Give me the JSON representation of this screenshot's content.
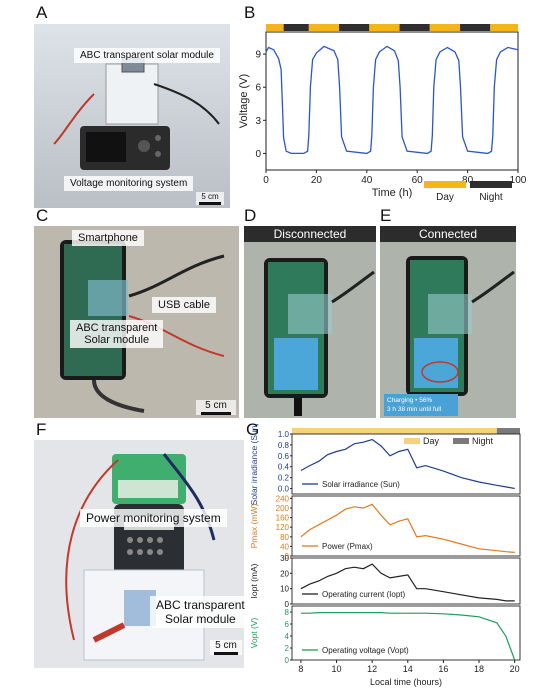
{
  "panels": {
    "A": {
      "letter": "A",
      "labels": {
        "module": "ABC transparent solar module",
        "monitor": "Voltage monitoring system"
      },
      "scale": "5 cm"
    },
    "B": {
      "letter": "B",
      "legend": {
        "day": "Day",
        "night": "Night"
      }
    },
    "C": {
      "letter": "C",
      "labels": {
        "phone": "Smartphone",
        "cable": "USB cable",
        "module_line1": "ABC transparent",
        "module_line2": "Solar module"
      },
      "scale": "5 cm"
    },
    "D": {
      "letter": "D",
      "header": "Disconnected"
    },
    "E": {
      "letter": "E",
      "header": "Connected",
      "overlay_line1": "Charging • 56%",
      "overlay_line2": "3 h 38 min until full"
    },
    "F": {
      "letter": "F",
      "labels": {
        "monitor": "Power monitoring system",
        "module_line1": "ABC transparent",
        "module_line2": "Solar module"
      },
      "scale": "5 cm"
    },
    "G": {
      "letter": "G",
      "legend": {
        "day": "Day",
        "night": "Night"
      }
    }
  },
  "colors": {
    "day": "#f4b41a",
    "night": "#2e2e2e",
    "blue": "#1f3d8f",
    "orange": "#e07a1f",
    "black": "#222222",
    "green": "#1e9e5a",
    "line_b": "#2a56c6"
  },
  "chart_data": [
    {
      "type": "line",
      "panel": "B",
      "xlabel": "Time (h)",
      "ylabel": "Voltage (V)",
      "xlim": [
        0,
        100
      ],
      "ylim": [
        -1.5,
        11
      ],
      "xticks": [
        "0",
        "20",
        "40",
        "60",
        "80",
        "100"
      ],
      "yticks": [
        "0",
        "3",
        "6",
        "9"
      ],
      "day_night_bands": [
        {
          "from": 0,
          "to": 7,
          "phase": "day"
        },
        {
          "from": 7,
          "to": 17,
          "phase": "night"
        },
        {
          "from": 17,
          "to": 29,
          "phase": "day"
        },
        {
          "from": 29,
          "to": 41,
          "phase": "night"
        },
        {
          "from": 41,
          "to": 53,
          "phase": "day"
        },
        {
          "from": 53,
          "to": 65,
          "phase": "night"
        },
        {
          "from": 65,
          "to": 77,
          "phase": "day"
        },
        {
          "from": 77,
          "to": 89,
          "phase": "night"
        },
        {
          "from": 89,
          "to": 100,
          "phase": "day"
        }
      ],
      "series": [
        {
          "x": [
            0,
            1,
            3,
            5,
            6,
            6.6,
            7,
            8,
            10,
            15,
            16.5,
            17,
            17.6,
            18.5,
            20,
            23,
            27,
            28.5,
            29.2,
            30,
            32,
            40,
            41.5,
            42,
            42.6,
            43.5,
            45,
            48,
            51,
            52.5,
            53.2,
            54,
            56,
            64,
            65.5,
            66,
            66.6,
            67.5,
            69,
            72,
            75,
            76.5,
            77.2,
            78,
            80,
            88,
            89.5,
            90,
            90.6,
            91.5,
            93,
            96,
            100
          ],
          "y": [
            9.2,
            9.6,
            9.4,
            8.6,
            7.6,
            4,
            1.4,
            0.2,
            0,
            0,
            0.2,
            1.6,
            6,
            8.5,
            9.1,
            9.7,
            9.3,
            8.5,
            6,
            1.5,
            0.2,
            0,
            0.2,
            1.6,
            6,
            8.5,
            9.2,
            9.7,
            9.3,
            8.4,
            6,
            1.5,
            0.2,
            0,
            0.2,
            1.6,
            6,
            8.5,
            9.2,
            9.6,
            9.2,
            8.4,
            6,
            1.5,
            0.2,
            0,
            0.2,
            1.6,
            6,
            8.5,
            9.2,
            9.6,
            9.4
          ]
        }
      ]
    },
    {
      "type": "line",
      "panel": "G",
      "xlabel": "Local time (hours)",
      "xlim": [
        7.5,
        20.3
      ],
      "xticks": [
        "8",
        "10",
        "12",
        "14",
        "16",
        "18",
        "20"
      ],
      "x": [
        8,
        8.5,
        9,
        9.5,
        10,
        10.5,
        11,
        11.5,
        12,
        12.5,
        13,
        13.5,
        14,
        14.5,
        15,
        16,
        17,
        18,
        19,
        19.5,
        20
      ],
      "day_night_bands": [
        {
          "from": 7.5,
          "to": 19,
          "phase": "day"
        },
        {
          "from": 19,
          "to": 20.3,
          "phase": "night"
        }
      ],
      "subplots": [
        {
          "ylabel": "Solar irradiance (Sun)",
          "ylim": [
            -0.1,
            1.0
          ],
          "yticks": [
            "0.0",
            "0.2",
            "0.4",
            "0.6",
            "0.8",
            "1.0"
          ],
          "series_name": "Solar irradiance (Sun)",
          "values": [
            0.33,
            0.42,
            0.5,
            0.62,
            0.68,
            0.72,
            0.82,
            0.85,
            0.9,
            0.78,
            0.6,
            0.68,
            0.72,
            0.38,
            0.42,
            0.32,
            0.2,
            0.12,
            0.06,
            0.03,
            0.0
          ]
        },
        {
          "ylabel": "Pmax (mW)",
          "ylim": [
            0,
            250
          ],
          "yticks": [
            "0",
            "40",
            "80",
            "120",
            "160",
            "200",
            "240"
          ],
          "series_name": "Power (Pmax)",
          "values": [
            80,
            110,
            130,
            150,
            170,
            195,
            205,
            200,
            215,
            170,
            130,
            145,
            155,
            80,
            85,
            70,
            50,
            30,
            22,
            18,
            15
          ]
        },
        {
          "ylabel": "Iopt (mA)",
          "ylim": [
            0,
            30
          ],
          "yticks": [
            "0",
            "10",
            "20",
            "30"
          ],
          "series_name": "Operating current (Iopt)",
          "values": [
            10,
            13,
            15,
            18,
            20,
            23,
            24,
            23,
            26,
            20,
            17,
            18,
            19,
            10,
            10,
            8,
            6,
            4,
            3,
            2,
            2
          ]
        },
        {
          "ylabel": "Vopt (V)",
          "ylim": [
            0,
            9
          ],
          "yticks": [
            "0",
            "2",
            "4",
            "6",
            "8"
          ],
          "series_name": "Operating voltage (Vopt)",
          "values": [
            7.8,
            7.8,
            7.9,
            7.9,
            7.9,
            7.9,
            7.9,
            7.9,
            7.9,
            7.9,
            7.8,
            7.8,
            7.8,
            7.8,
            7.8,
            7.7,
            7.5,
            7.2,
            6.2,
            4.0,
            0.0
          ]
        }
      ]
    }
  ]
}
